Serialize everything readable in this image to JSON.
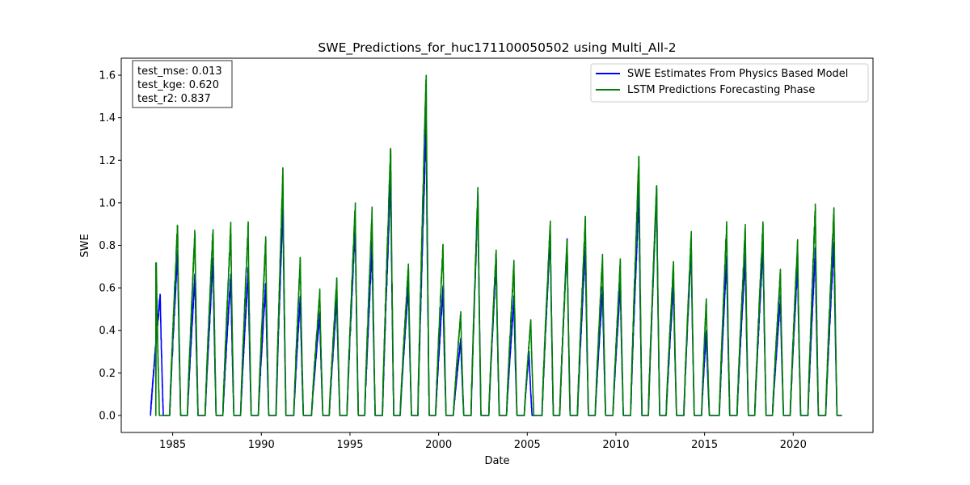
{
  "chart_data": {
    "type": "line",
    "title": "SWE_Predictions_for_huc171100050502 using Multi_All-2",
    "xlabel": "Date",
    "ylabel": "SWE",
    "xlim": [
      1982.1,
      2024.5
    ],
    "ylim": [
      -0.08,
      1.68
    ],
    "x_ticks": [
      1985,
      1990,
      1995,
      2000,
      2005,
      2010,
      2015,
      2020
    ],
    "x_tick_labels": [
      "1985",
      "1990",
      "1995",
      "2000",
      "2005",
      "2010",
      "2015",
      "2020"
    ],
    "y_ticks": [
      0.0,
      0.2,
      0.4,
      0.6,
      0.8,
      1.0,
      1.2,
      1.4,
      1.6
    ],
    "y_tick_labels": [
      "0.0",
      "0.2",
      "0.4",
      "0.6",
      "0.8",
      "1.0",
      "1.2",
      "1.4",
      "1.6"
    ],
    "grid": false,
    "legend_position": "top-right",
    "series": [
      {
        "name": "SWE Estimates From Physics Based Model",
        "color": "#0000ff",
        "start": 1983.75,
        "end": 2022.75,
        "annual_peaks": [
          {
            "year": 1984,
            "peak": 0.57,
            "peak_date": 1984.3
          },
          {
            "year": 1985,
            "peak": 0.78,
            "peak_date": 1985.28
          },
          {
            "year": 1986,
            "peak": 0.66,
            "peak_date": 1986.26
          },
          {
            "year": 1987,
            "peak": 0.74,
            "peak_date": 1987.28
          },
          {
            "year": 1988,
            "peak": 0.66,
            "peak_date": 1988.28
          },
          {
            "year": 1989,
            "peak": 0.68,
            "peak_date": 1989.26
          },
          {
            "year": 1990,
            "peak": 0.62,
            "peak_date": 1990.25
          },
          {
            "year": 1991,
            "peak": 1.0,
            "peak_date": 1991.22
          },
          {
            "year": 1992,
            "peak": 0.56,
            "peak_date": 1992.2
          },
          {
            "year": 1993,
            "peak": 0.48,
            "peak_date": 1993.3
          },
          {
            "year": 1994,
            "peak": 0.55,
            "peak_date": 1994.26
          },
          {
            "year": 1995,
            "peak": 0.9,
            "peak_date": 1995.3
          },
          {
            "year": 1996,
            "peak": 0.8,
            "peak_date": 1996.25
          },
          {
            "year": 1997,
            "peak": 1.13,
            "peak_date": 1997.3
          },
          {
            "year": 1998,
            "peak": 0.62,
            "peak_date": 1998.3
          },
          {
            "year": 1999,
            "peak": 1.38,
            "peak_date": 1999.3
          },
          {
            "year": 2000,
            "peak": 0.6,
            "peak_date": 2000.25
          },
          {
            "year": 2001,
            "peak": 0.36,
            "peak_date": 2001.25
          },
          {
            "year": 2002,
            "peak": 1.03,
            "peak_date": 2002.22
          },
          {
            "year": 2003,
            "peak": 0.73,
            "peak_date": 2003.25
          },
          {
            "year": 2004,
            "peak": 0.55,
            "peak_date": 2004.25
          },
          {
            "year": 2005,
            "peak": 0.3,
            "peak_date": 2005.1
          },
          {
            "year": 2006,
            "peak": 0.85,
            "peak_date": 2006.3
          },
          {
            "year": 2007,
            "peak": 0.82,
            "peak_date": 2007.25
          },
          {
            "year": 2008,
            "peak": 0.8,
            "peak_date": 2008.28
          },
          {
            "year": 2009,
            "peak": 0.6,
            "peak_date": 2009.25
          },
          {
            "year": 2010,
            "peak": 0.62,
            "peak_date": 2010.25
          },
          {
            "year": 2011,
            "peak": 1.05,
            "peak_date": 2011.3
          },
          {
            "year": 2012,
            "peak": 1.05,
            "peak_date": 2012.3
          },
          {
            "year": 2013,
            "peak": 0.62,
            "peak_date": 2013.25
          },
          {
            "year": 2014,
            "peak": 0.8,
            "peak_date": 2014.25
          },
          {
            "year": 2015,
            "peak": 0.4,
            "peak_date": 2015.1
          },
          {
            "year": 2016,
            "peak": 0.74,
            "peak_date": 2016.25
          },
          {
            "year": 2017,
            "peak": 0.75,
            "peak_date": 2017.3
          },
          {
            "year": 2018,
            "peak": 0.8,
            "peak_date": 2018.3
          },
          {
            "year": 2019,
            "peak": 0.55,
            "peak_date": 2019.28
          },
          {
            "year": 2020,
            "peak": 0.72,
            "peak_date": 2020.25
          },
          {
            "year": 2021,
            "peak": 0.78,
            "peak_date": 2021.25
          },
          {
            "year": 2022,
            "peak": 0.82,
            "peak_date": 2022.3
          }
        ]
      },
      {
        "name": "LSTM Predictions Forecasting Phase",
        "color": "#008000",
        "start": 1984.05,
        "end": 2022.75,
        "annual_peaks": [
          {
            "year": 1984,
            "peak": 0.72,
            "peak_date": 1984.08
          },
          {
            "year": 1985,
            "peak": 0.9,
            "peak_date": 1985.28
          },
          {
            "year": 1986,
            "peak": 0.87,
            "peak_date": 1986.26
          },
          {
            "year": 1987,
            "peak": 0.88,
            "peak_date": 1987.28
          },
          {
            "year": 1988,
            "peak": 0.89,
            "peak_date": 1988.28
          },
          {
            "year": 1989,
            "peak": 0.89,
            "peak_date": 1989.26
          },
          {
            "year": 1990,
            "peak": 0.83,
            "peak_date": 1990.25
          },
          {
            "year": 1991,
            "peak": 1.15,
            "peak_date": 1991.22
          },
          {
            "year": 1992,
            "peak": 0.74,
            "peak_date": 1992.2
          },
          {
            "year": 1993,
            "peak": 0.58,
            "peak_date": 1993.3
          },
          {
            "year": 1994,
            "peak": 0.64,
            "peak_date": 1994.26
          },
          {
            "year": 1995,
            "peak": 0.99,
            "peak_date": 1995.3
          },
          {
            "year": 1996,
            "peak": 0.96,
            "peak_date": 1996.25
          },
          {
            "year": 1997,
            "peak": 1.27,
            "peak_date": 1997.3
          },
          {
            "year": 1998,
            "peak": 0.71,
            "peak_date": 1998.3
          },
          {
            "year": 1999,
            "peak": 1.6,
            "peak_date": 1999.3
          },
          {
            "year": 2000,
            "peak": 0.8,
            "peak_date": 2000.25
          },
          {
            "year": 2001,
            "peak": 0.48,
            "peak_date": 2001.25
          },
          {
            "year": 2002,
            "peak": 1.06,
            "peak_date": 2002.22
          },
          {
            "year": 2003,
            "peak": 0.78,
            "peak_date": 2003.25
          },
          {
            "year": 2004,
            "peak": 0.72,
            "peak_date": 2004.25
          },
          {
            "year": 2005,
            "peak": 0.45,
            "peak_date": 2005.2
          },
          {
            "year": 2006,
            "peak": 0.9,
            "peak_date": 2006.3
          },
          {
            "year": 2007,
            "peak": 0.82,
            "peak_date": 2007.25
          },
          {
            "year": 2008,
            "peak": 0.93,
            "peak_date": 2008.28
          },
          {
            "year": 2009,
            "peak": 0.75,
            "peak_date": 2009.25
          },
          {
            "year": 2010,
            "peak": 0.72,
            "peak_date": 2010.25
          },
          {
            "year": 2011,
            "peak": 1.22,
            "peak_date": 2011.3
          },
          {
            "year": 2012,
            "peak": 1.08,
            "peak_date": 2012.3
          },
          {
            "year": 2013,
            "peak": 0.72,
            "peak_date": 2013.25
          },
          {
            "year": 2014,
            "peak": 0.85,
            "peak_date": 2014.25
          },
          {
            "year": 2015,
            "peak": 0.55,
            "peak_date": 2015.1
          },
          {
            "year": 2016,
            "peak": 0.9,
            "peak_date": 2016.25
          },
          {
            "year": 2017,
            "peak": 0.88,
            "peak_date": 2017.3
          },
          {
            "year": 2018,
            "peak": 0.9,
            "peak_date": 2018.3
          },
          {
            "year": 2019,
            "peak": 0.68,
            "peak_date": 2019.28
          },
          {
            "year": 2020,
            "peak": 0.82,
            "peak_date": 2020.25
          },
          {
            "year": 2021,
            "peak": 0.99,
            "peak_date": 2021.25
          },
          {
            "year": 2022,
            "peak": 0.97,
            "peak_date": 2022.3
          }
        ]
      }
    ]
  },
  "metrics": {
    "lines": [
      "test_mse: 0.013",
      "test_kge: 0.620",
      "test_r2: 0.837"
    ]
  }
}
